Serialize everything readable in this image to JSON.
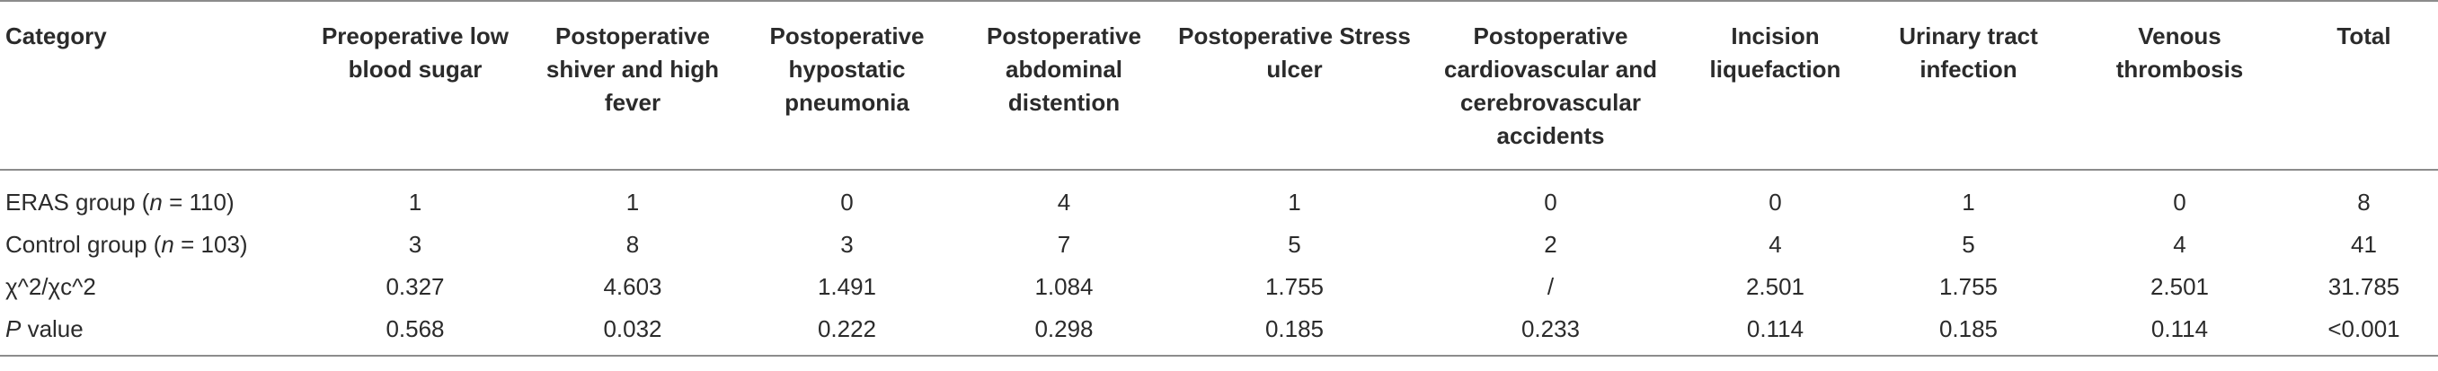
{
  "table": {
    "headers": [
      "Category",
      "Preoperative low blood sugar",
      "Postoperative shiver and high fever",
      "Postoperative hypostatic pneumonia",
      "Postoperative abdominal distention",
      "Postoperative Stress ulcer",
      "Postoperative cardiovascular and cerebrovascular accidents",
      "Incision liquefaction",
      "Urinary tract infection",
      "Venous thrombosis",
      "Total"
    ],
    "rows": [
      {
        "label_prefix": "ERAS group (",
        "label_italic": "n",
        "label_suffix": " = 110)",
        "cells": [
          "1",
          "1",
          "0",
          "4",
          "1",
          "0",
          "0",
          "1",
          "0",
          "8"
        ]
      },
      {
        "label_prefix": "Control group (",
        "label_italic": "n",
        "label_suffix": " = 103)",
        "cells": [
          "3",
          "8",
          "3",
          "7",
          "5",
          "2",
          "4",
          "5",
          "4",
          "41"
        ]
      },
      {
        "label_prefix": "χ^2/χc^2",
        "label_italic": "",
        "label_suffix": "",
        "cells": [
          "0.327",
          "4.603",
          "1.491",
          "1.084",
          "1.755",
          "/",
          "2.501",
          "1.755",
          "2.501",
          "31.785"
        ]
      },
      {
        "label_prefix": "",
        "label_italic": "P",
        "label_suffix": " value",
        "cells": [
          "0.568",
          "0.032",
          "0.222",
          "0.298",
          "0.185",
          "0.233",
          "0.114",
          "0.185",
          "0.114",
          "<0.001"
        ]
      }
    ]
  }
}
